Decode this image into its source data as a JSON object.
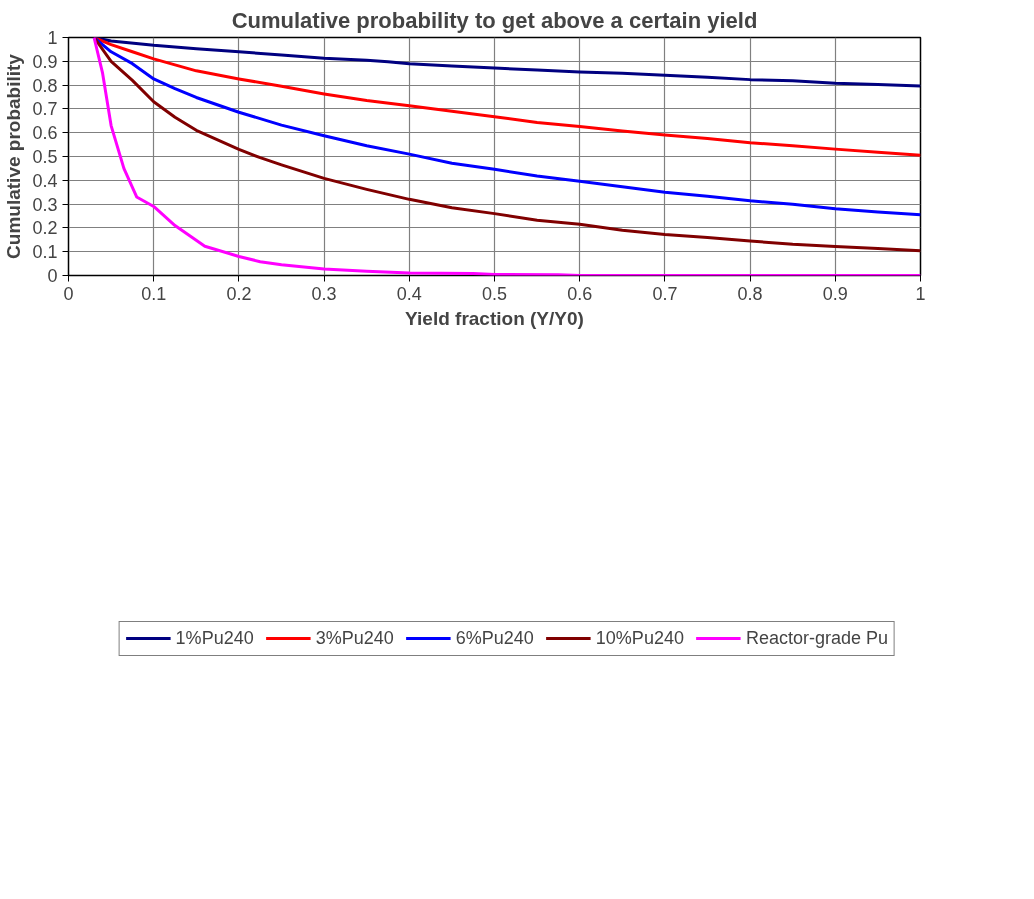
{
  "chart_data": {
    "type": "line",
    "title": "Cumulative probability to get above a certain yield",
    "xlabel": "Yield fraction (Y/Y0)",
    "ylabel": "Cumulative probability",
    "xlim": [
      0,
      1
    ],
    "ylim": [
      0,
      1
    ],
    "xticks": [
      0,
      0.1,
      0.2,
      0.3,
      0.4,
      0.5,
      0.6,
      0.7,
      0.8,
      0.9,
      1
    ],
    "yticks": [
      0,
      0.1,
      0.2,
      0.3,
      0.4,
      0.5,
      0.6,
      0.7,
      0.8,
      0.9,
      1
    ],
    "grid": true,
    "legend": "bottom",
    "marker": "none",
    "line_style": "solid",
    "series": [
      {
        "name": "1%Pu240",
        "color": "#000080",
        "x": [
          0.03,
          0.05,
          0.1,
          0.15,
          0.2,
          0.25,
          0.3,
          0.35,
          0.375,
          0.4,
          0.45,
          0.5,
          0.55,
          0.6,
          0.65,
          0.7,
          0.75,
          0.8,
          0.85,
          0.9,
          0.95,
          1
        ],
        "values": [
          1,
          0.985,
          0.967,
          0.953,
          0.94,
          0.926,
          0.913,
          0.904,
          0.898,
          0.89,
          0.88,
          0.872,
          0.863,
          0.855,
          0.85,
          0.841,
          0.833,
          0.823,
          0.818,
          0.808,
          0.803,
          0.796
        ]
      },
      {
        "name": "3%Pu240",
        "color": "#ff0000",
        "x": [
          0.03,
          0.05,
          0.075,
          0.1,
          0.15,
          0.2,
          0.25,
          0.3,
          0.35,
          0.4,
          0.45,
          0.5,
          0.55,
          0.6,
          0.65,
          0.7,
          0.75,
          0.8,
          0.85,
          0.9,
          0.95,
          1
        ],
        "values": [
          1,
          0.97,
          0.94,
          0.91,
          0.86,
          0.826,
          0.795,
          0.763,
          0.735,
          0.713,
          0.69,
          0.667,
          0.643,
          0.626,
          0.607,
          0.59,
          0.576,
          0.558,
          0.545,
          0.531,
          0.518,
          0.505
        ]
      },
      {
        "name": "6%Pu240",
        "color": "#0000ff",
        "x": [
          0.03,
          0.05,
          0.075,
          0.1,
          0.125,
          0.15,
          0.2,
          0.25,
          0.3,
          0.35,
          0.4,
          0.45,
          0.5,
          0.55,
          0.6,
          0.65,
          0.7,
          0.75,
          0.8,
          0.85,
          0.9,
          0.95,
          1
        ],
        "values": [
          1,
          0.94,
          0.89,
          0.826,
          0.785,
          0.748,
          0.686,
          0.632,
          0.587,
          0.545,
          0.51,
          0.472,
          0.446,
          0.418,
          0.396,
          0.373,
          0.35,
          0.333,
          0.314,
          0.299,
          0.28,
          0.267,
          0.255
        ]
      },
      {
        "name": "10%Pu240",
        "color": "#800000",
        "x": [
          0.03,
          0.05,
          0.075,
          0.1,
          0.125,
          0.15,
          0.2,
          0.225,
          0.25,
          0.3,
          0.35,
          0.4,
          0.45,
          0.5,
          0.55,
          0.6,
          0.65,
          0.7,
          0.75,
          0.8,
          0.85,
          0.9,
          0.95,
          1
        ],
        "values": [
          1,
          0.9,
          0.82,
          0.73,
          0.665,
          0.61,
          0.53,
          0.495,
          0.465,
          0.408,
          0.362,
          0.32,
          0.285,
          0.26,
          0.232,
          0.215,
          0.19,
          0.172,
          0.16,
          0.145,
          0.131,
          0.122,
          0.113,
          0.104
        ]
      },
      {
        "name": "Reactor-grade Pu",
        "color": "#ff00ff",
        "x": [
          0.03,
          0.04,
          0.05,
          0.065,
          0.08,
          0.1,
          0.125,
          0.16,
          0.2,
          0.225,
          0.25,
          0.3,
          0.35,
          0.4,
          0.475,
          0.5,
          0.575,
          0.6,
          0.7,
          0.8,
          0.9,
          1
        ],
        "values": [
          1,
          0.85,
          0.63,
          0.45,
          0.33,
          0.29,
          0.21,
          0.123,
          0.08,
          0.058,
          0.045,
          0.027,
          0.018,
          0.01,
          0.008,
          0.004,
          0.003,
          0,
          0,
          0,
          0,
          0
        ]
      }
    ]
  }
}
